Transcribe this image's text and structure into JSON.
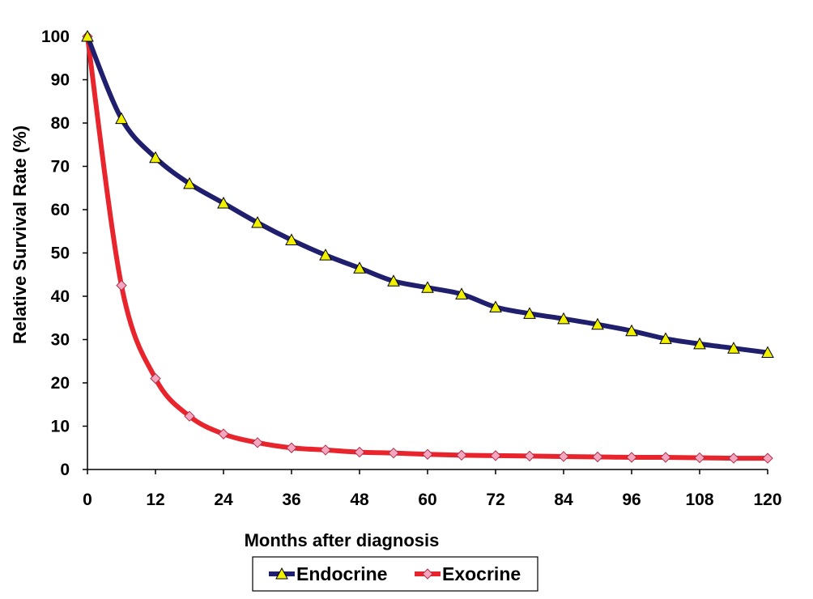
{
  "chart_data": {
    "type": "line",
    "title": "",
    "xlabel": "Months after diagnosis",
    "ylabel": "Relative Survival Rate (%)",
    "xlim": [
      0,
      120
    ],
    "ylim": [
      0,
      100
    ],
    "xticks": [
      "0",
      "12",
      "24",
      "36",
      "48",
      "60",
      "72",
      "84",
      "96",
      "108",
      "120"
    ],
    "yticks": [
      "0",
      "10",
      "20",
      "30",
      "40",
      "50",
      "60",
      "70",
      "80",
      "90",
      "100"
    ],
    "grid": false,
    "legend_position": "bottom",
    "x": [
      0,
      6,
      12,
      18,
      24,
      30,
      36,
      42,
      48,
      54,
      60,
      66,
      72,
      78,
      84,
      90,
      96,
      102,
      108,
      114,
      120
    ],
    "series": [
      {
        "name": "Endocrine",
        "color": "#1f1f6e",
        "marker": "triangle",
        "marker_color": "#f0f000",
        "values": [
          100,
          81,
          72,
          66,
          61.5,
          57,
          53,
          49.5,
          46.5,
          43.5,
          42,
          40.5,
          37.5,
          36,
          34.8,
          33.5,
          32,
          30.2,
          29,
          28,
          27
        ]
      },
      {
        "name": "Exocrine",
        "color": "#e8242c",
        "marker": "diamond",
        "marker_color": "#f4a6c0",
        "values": [
          100,
          42.5,
          21,
          12.3,
          8.2,
          6.2,
          5,
          4.5,
          4,
          3.8,
          3.5,
          3.3,
          3.2,
          3.1,
          3,
          2.9,
          2.8,
          2.8,
          2.7,
          2.6,
          2.6
        ]
      }
    ]
  }
}
